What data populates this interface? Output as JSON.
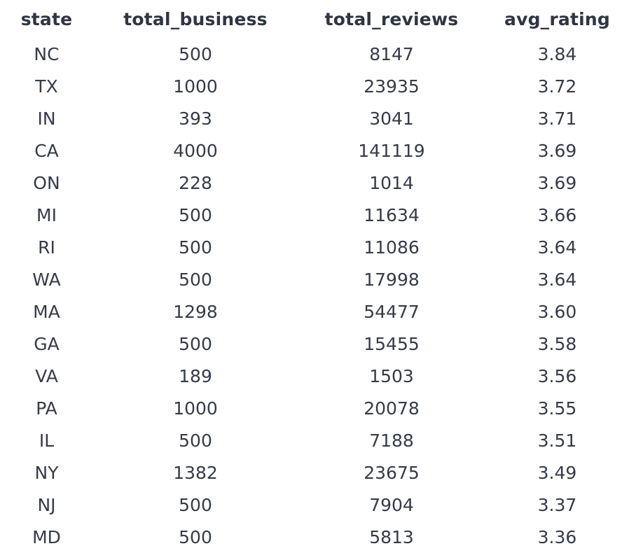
{
  "table": {
    "columns": [
      "state",
      "total_business",
      "total_reviews",
      "avg_rating"
    ],
    "rows": [
      [
        "NC",
        "500",
        "8147",
        "3.84"
      ],
      [
        "TX",
        "1000",
        "23935",
        "3.72"
      ],
      [
        "IN",
        "393",
        "3041",
        "3.71"
      ],
      [
        "CA",
        "4000",
        "141119",
        "3.69"
      ],
      [
        "ON",
        "228",
        "1014",
        "3.69"
      ],
      [
        "MI",
        "500",
        "11634",
        "3.66"
      ],
      [
        "RI",
        "500",
        "11086",
        "3.64"
      ],
      [
        "WA",
        "500",
        "17998",
        "3.64"
      ],
      [
        "MA",
        "1298",
        "54477",
        "3.60"
      ],
      [
        "GA",
        "500",
        "15455",
        "3.58"
      ],
      [
        "VA",
        "189",
        "1503",
        "3.56"
      ],
      [
        "PA",
        "1000",
        "20078",
        "3.55"
      ],
      [
        "IL",
        "500",
        "7188",
        "3.51"
      ],
      [
        "NY",
        "1382",
        "23675",
        "3.49"
      ],
      [
        "NJ",
        "500",
        "7904",
        "3.37"
      ],
      [
        "MD",
        "500",
        "5813",
        "3.36"
      ]
    ]
  }
}
